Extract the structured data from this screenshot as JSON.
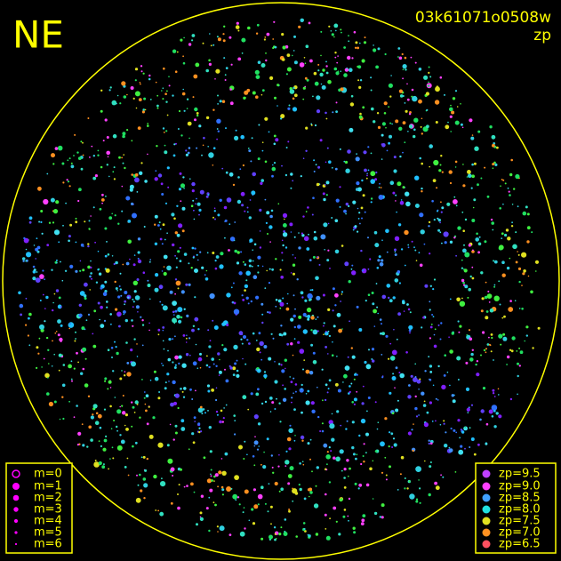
{
  "header": {
    "title": "NE",
    "image_id": "03k61071o0508w",
    "mode": "zp"
  },
  "legend_magnitude": [
    "m=0",
    "m=1",
    "m=2",
    "m=3",
    "m=4",
    "m=5",
    "m=6"
  ],
  "legend_zp": [
    "zp=9.5",
    "zp=9.0",
    "zp=8.5",
    "zp=8.0",
    "zp=7.5",
    "zp=7.0",
    "zp=6.5"
  ]
}
